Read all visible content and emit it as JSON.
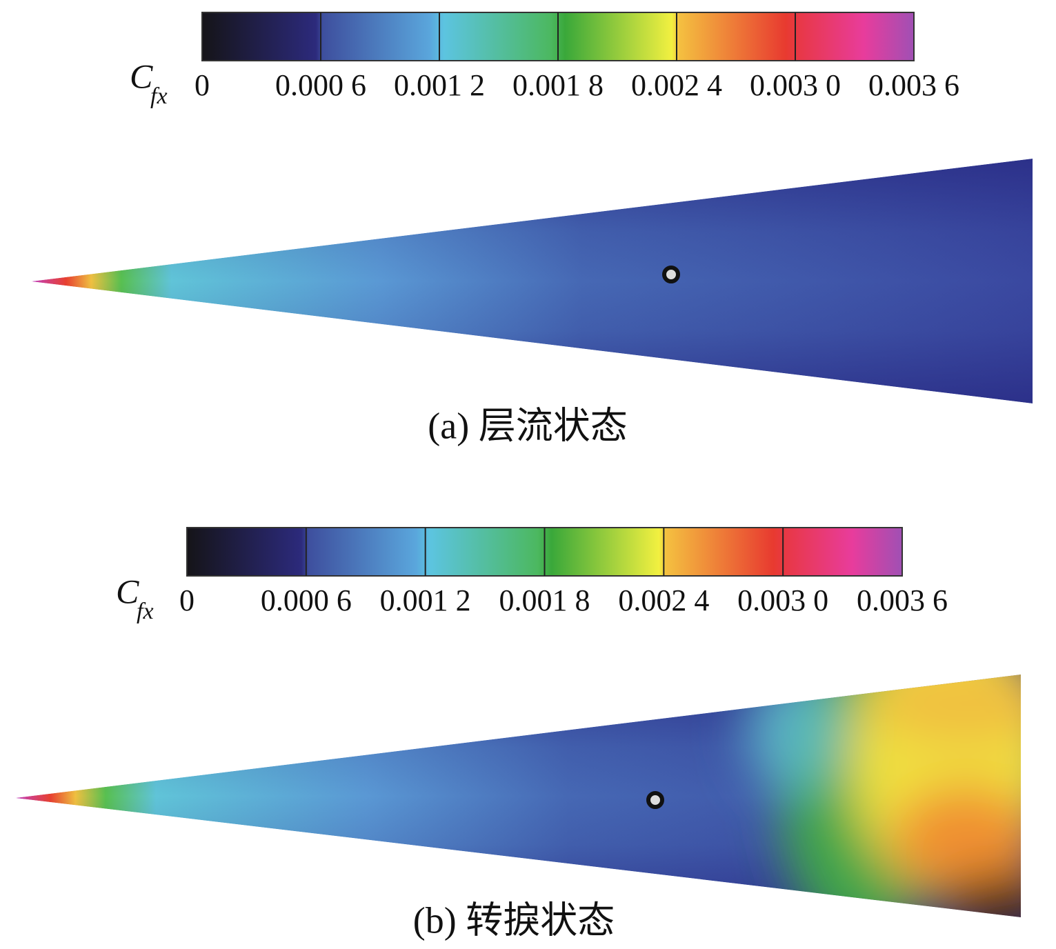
{
  "panels": [
    {
      "colorbar": {
        "symbol": "C",
        "subscript": "fx",
        "ticks": [
          "0",
          "0.000 6",
          "0.001 2",
          "0.001 8",
          "0.002 4",
          "0.003 0",
          "0.003 6"
        ]
      },
      "caption": "(a) 层流状态"
    },
    {
      "colorbar": {
        "symbol": "C",
        "subscript": "fx",
        "ticks": [
          "0",
          "0.000 6",
          "0.001 2",
          "0.001 8",
          "0.002 4",
          "0.003 0",
          "0.003 6"
        ]
      },
      "caption": "(b) 转捩状态"
    }
  ]
}
